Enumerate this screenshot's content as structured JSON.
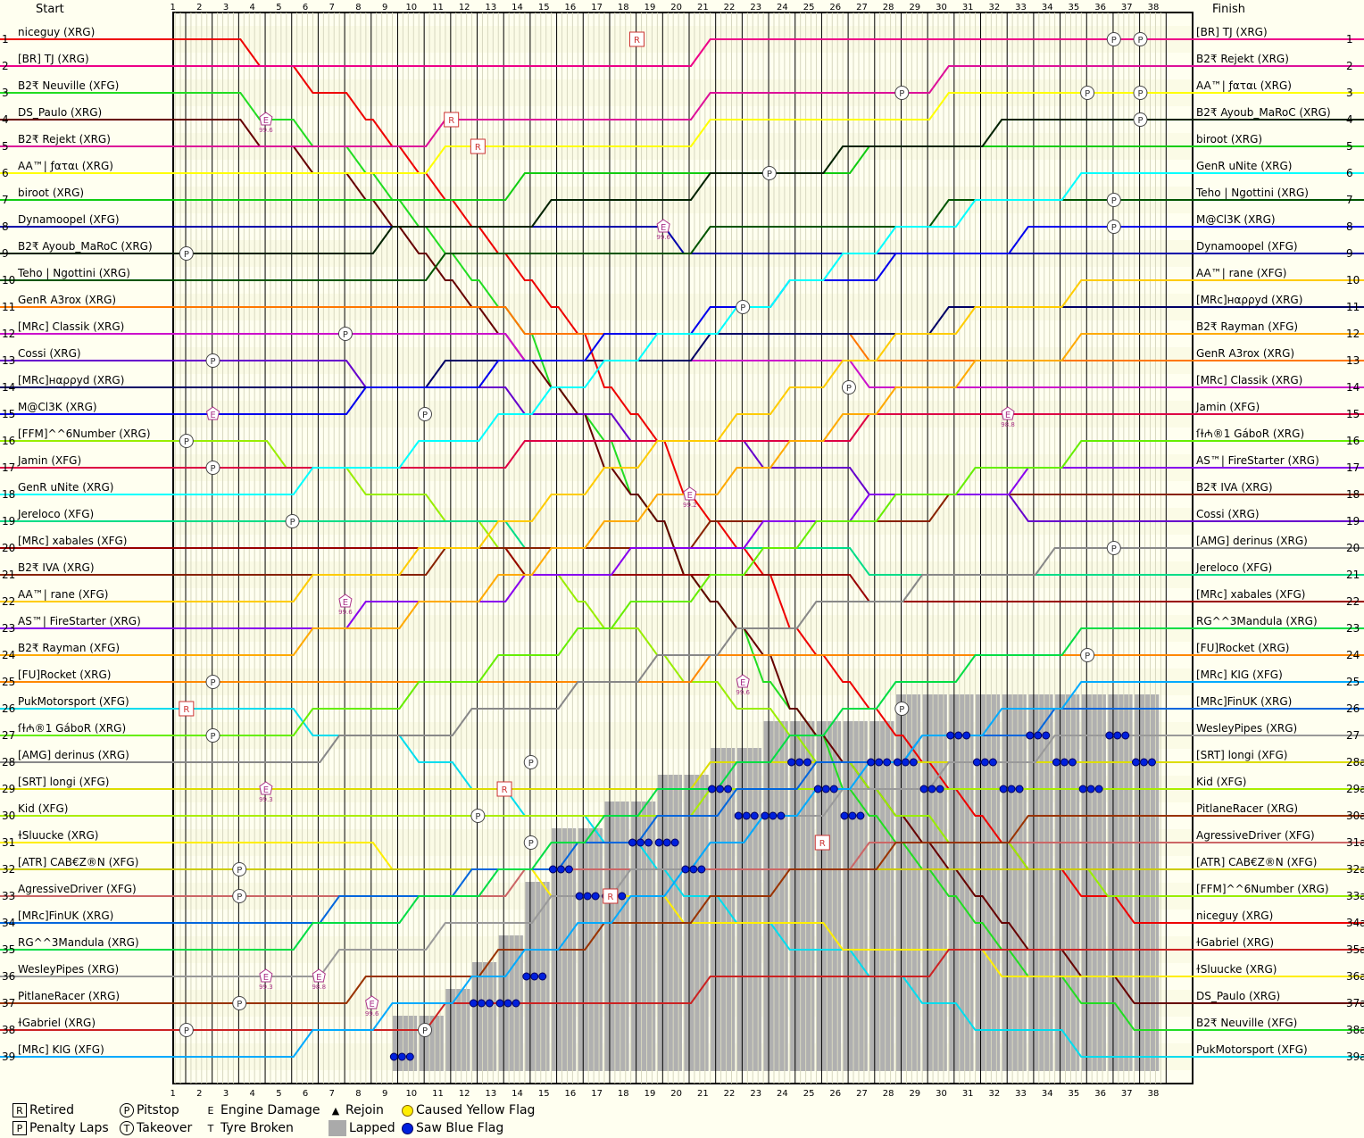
{
  "chart_data": {
    "type": "line",
    "header": {
      "start_label": "Start",
      "finish_label": "Finish"
    },
    "laps": [
      1,
      2,
      3,
      4,
      5,
      6,
      7,
      8,
      9,
      10,
      11,
      12,
      13,
      14,
      15,
      16,
      17,
      18,
      19,
      20,
      21,
      22,
      23,
      24,
      25,
      26,
      27,
      28,
      29,
      30,
      31,
      32,
      33,
      34,
      35,
      36,
      37,
      38
    ],
    "positions": [
      1,
      2,
      3,
      4,
      5,
      6,
      7,
      8,
      9,
      10,
      11,
      12,
      13,
      14,
      15,
      16,
      17,
      18,
      19,
      20,
      21,
      22,
      23,
      24,
      25,
      26,
      27,
      28,
      29,
      30,
      31,
      32,
      33,
      34,
      35,
      36,
      37,
      38,
      39
    ],
    "right_positions": [
      "1",
      "2",
      "3",
      "4",
      "5",
      "6",
      "7",
      "8",
      "9",
      "10",
      "11",
      "12",
      "13",
      "14",
      "15",
      "16",
      "17",
      "18",
      "19",
      "20",
      "21",
      "22",
      "23",
      "24",
      "25",
      "26",
      "27",
      "28a",
      "29a",
      "30a",
      "31a",
      "32a",
      "33a",
      "34a",
      "35a",
      "36a",
      "37a",
      "38a",
      "39a"
    ],
    "start_grid": [
      "niceguy (XRG)",
      "[BR] TJ (XRG)",
      "B2₹ Neuville (XFG)",
      "DS_Paulo (XRG)",
      "B2₹ Rejekt (XRG)",
      "AA™| ƒαται (XRG)",
      "biroot (XRG)",
      "Dynamoopel (XFG)",
      "B2₹ Ayoub_MaRoC (XRG)",
      "Teho | Ngottini (XRG)",
      "GenR A3rox (XRG)",
      "[MRc] Classik (XRG)",
      "Cossi (XRG)",
      "[MRc]нαρρуd (XRG)",
      "M@Cl3K (XRG)",
      "[FFM]^^6Number (XRG)",
      "Jamin (XFG)",
      "GenR uNite (XRG)",
      "Jereloco (XFG)",
      "[MRc] xabales (XFG)",
      "B2₹ IVA (XRG)",
      "AA™| rane (XFG)",
      "AS™| FireStarter (XRG)",
      "B2₹ Rayman (XFG)",
      "[FU]Rocket (XRG)",
      "PukMotorsport (XFG)",
      "ſɫ₼®1 GáboR (XRG)",
      "[AMG] derinus (XRG)",
      "[SRT] longi (XFG)",
      "Kid (XFG)",
      "ɫSluucke (XRG)",
      "[ATR] CAB€Z®N (XFG)",
      "AgressiveDriver (XFG)",
      "[MRc]FinUK (XRG)",
      "RG^^3Mandula (XRG)",
      "WesleyPipes (XRG)",
      "PitlaneRacer (XRG)",
      "ɫGabriel (XRG)",
      "[MRc] KIG (XFG)"
    ],
    "finish_order": [
      "[BR] TJ (XRG)",
      "B2₹ Rejekt (XRG)",
      "AA™| ƒαται (XRG)",
      "B2₹ Ayoub_MaRoC (XRG)",
      "biroot (XRG)",
      "GenR uNite (XRG)",
      "Teho | Ngottini (XRG)",
      "M@Cl3K (XRG)",
      "Dynamoopel (XFG)",
      "AA™| rane (XFG)",
      "[MRc]нαρρуd (XRG)",
      "B2₹ Rayman (XFG)",
      "GenR A3rox (XRG)",
      "[MRc] Classik (XRG)",
      "Jamin (XFG)",
      "ſɫ₼®1 GáboR (XRG)",
      "AS™| FireStarter (XRG)",
      "B2₹ IVA (XRG)",
      "Cossi (XRG)",
      "[AMG] derinus (XRG)",
      "Jereloco (XFG)",
      "[MRc] xabales (XFG)",
      "RG^^3Mandula (XRG)",
      "[FU]Rocket (XRG)",
      "[MRc] KIG (XFG)",
      "[MRc]FinUK (XRG)",
      "WesleyPipes (XRG)",
      "[SRT] longi (XFG)",
      "Kid (XFG)",
      "PitlaneRacer (XRG)",
      "AgressiveDriver (XFG)",
      "[ATR] CAB€Z®N (XFG)",
      "[FFM]^^6Number (XRG)",
      "niceguy (XRG)",
      "ɫGabriel (XRG)",
      "ɫSluucke (XRG)",
      "DS_Paulo (XRG)",
      "B2₹ Neuville (XFG)",
      "PukMotorsport (XFG)"
    ],
    "driver_colors": [
      "#ee0000",
      "#ee0088",
      "#22dd22",
      "#660000",
      "#dd1199",
      "#ffff00",
      "#11cc11",
      "#0000aa",
      "#002200",
      "#005500",
      "#ff7700",
      "#cc11cc",
      "#6600cc",
      "#000066",
      "#0000ee",
      "#99ee00",
      "#dd0044",
      "#00ffff",
      "#00dd88",
      "#990000",
      "#882200",
      "#ffcc00",
      "#8800ee",
      "#ffaa00",
      "#ff8800",
      "#00ddee",
      "#66ee00",
      "#888888",
      "#dddd00",
      "#aaee00",
      "#ffee00",
      "#cccc00",
      "#cc6666",
      "#0066dd",
      "#00dd44",
      "#999999",
      "#993300",
      "#cc2222",
      "#00aaff"
    ],
    "annotations": [
      {
        "type": "R",
        "lap": 18,
        "pos": 1
      },
      {
        "type": "P",
        "lap": 36,
        "pos": 1
      },
      {
        "type": "P",
        "lap": 37,
        "pos": 1
      },
      {
        "type": "P",
        "lap": 28,
        "pos": 3
      },
      {
        "type": "P",
        "lap": 35,
        "pos": 3
      },
      {
        "type": "P",
        "lap": 37,
        "pos": 3
      },
      {
        "type": "E",
        "lap": 4,
        "pos": 4,
        "text": "99.6"
      },
      {
        "type": "R",
        "lap": 11,
        "pos": 4
      },
      {
        "type": "P",
        "lap": 37,
        "pos": 4
      },
      {
        "type": "R",
        "lap": 12,
        "pos": 5
      },
      {
        "type": "P",
        "lap": 23,
        "pos": 6
      },
      {
        "type": "P",
        "lap": 36,
        "pos": 7
      },
      {
        "type": "E",
        "lap": 19,
        "pos": 8,
        "text": "99.6"
      },
      {
        "type": "P",
        "lap": 36,
        "pos": 8
      },
      {
        "type": "P",
        "lap": 1,
        "pos": 9
      },
      {
        "type": "P",
        "lap": 22,
        "pos": 11
      },
      {
        "type": "P",
        "lap": 7,
        "pos": 12
      },
      {
        "type": "P",
        "lap": 2,
        "pos": 13
      },
      {
        "type": "P",
        "lap": 26,
        "pos": 14
      },
      {
        "type": "P",
        "lap": 10,
        "pos": 15
      },
      {
        "type": "E",
        "lap": 2,
        "pos": 15
      },
      {
        "type": "E",
        "lap": 32,
        "pos": 15,
        "text": "98.8"
      },
      {
        "type": "P",
        "lap": 1,
        "pos": 16
      },
      {
        "type": "P",
        "lap": 2,
        "pos": 17
      },
      {
        "type": "E",
        "lap": 20,
        "pos": 18,
        "text": "99.2"
      },
      {
        "type": "P",
        "lap": 5,
        "pos": 19
      },
      {
        "type": "P",
        "lap": 36,
        "pos": 20
      },
      {
        "type": "E",
        "lap": 7,
        "pos": 22,
        "text": "99.6"
      },
      {
        "type": "P",
        "lap": 35,
        "pos": 24
      },
      {
        "type": "P",
        "lap": 2,
        "pos": 25
      },
      {
        "type": "E",
        "lap": 22,
        "pos": 25,
        "text": "99.6"
      },
      {
        "type": "R",
        "lap": 1,
        "pos": 26
      },
      {
        "type": "P",
        "lap": 28,
        "pos": 26
      },
      {
        "type": "P",
        "lap": 2,
        "pos": 27
      },
      {
        "type": "P",
        "lap": 14,
        "pos": 28
      },
      {
        "type": "E",
        "lap": 4,
        "pos": 29,
        "text": "99.3"
      },
      {
        "type": "R",
        "lap": 13,
        "pos": 29
      },
      {
        "type": "P",
        "lap": 12,
        "pos": 30
      },
      {
        "type": "P",
        "lap": 14,
        "pos": 31
      },
      {
        "type": "R",
        "lap": 25,
        "pos": 31
      },
      {
        "type": "P",
        "lap": 3,
        "pos": 32
      },
      {
        "type": "P",
        "lap": 3,
        "pos": 33
      },
      {
        "type": "R",
        "lap": 17,
        "pos": 33
      },
      {
        "type": "E",
        "lap": 4,
        "pos": 36,
        "text": "99.3"
      },
      {
        "type": "E",
        "lap": 6,
        "pos": 36,
        "text": "98.8"
      },
      {
        "type": "P",
        "lap": 3,
        "pos": 37
      },
      {
        "type": "E",
        "lap": 8,
        "pos": 37,
        "text": "99.6"
      },
      {
        "type": "P",
        "lap": 1,
        "pos": 38
      },
      {
        "type": "P",
        "lap": 10,
        "pos": 38
      }
    ]
  },
  "legend": {
    "retired": {
      "symbol": "R",
      "label": "Retired"
    },
    "penalty": {
      "symbol": "P",
      "label": "Penalty Laps"
    },
    "pitstop": {
      "symbol": "P",
      "label": "Pitstop"
    },
    "takeover": {
      "symbol": "T",
      "label": "Takeover"
    },
    "engine": {
      "symbol": "E",
      "label": "Engine Damage"
    },
    "tyre": {
      "symbol": "T",
      "label": "Tyre Broken"
    },
    "rejoin": {
      "symbol": "▲",
      "label": "Rejoin"
    },
    "lapped": {
      "label": "Lapped"
    },
    "yellow": {
      "label": "Caused Yellow Flag",
      "color": "#ffee00"
    },
    "blue": {
      "label": "Saw Blue Flag",
      "color": "#0020dd"
    }
  }
}
